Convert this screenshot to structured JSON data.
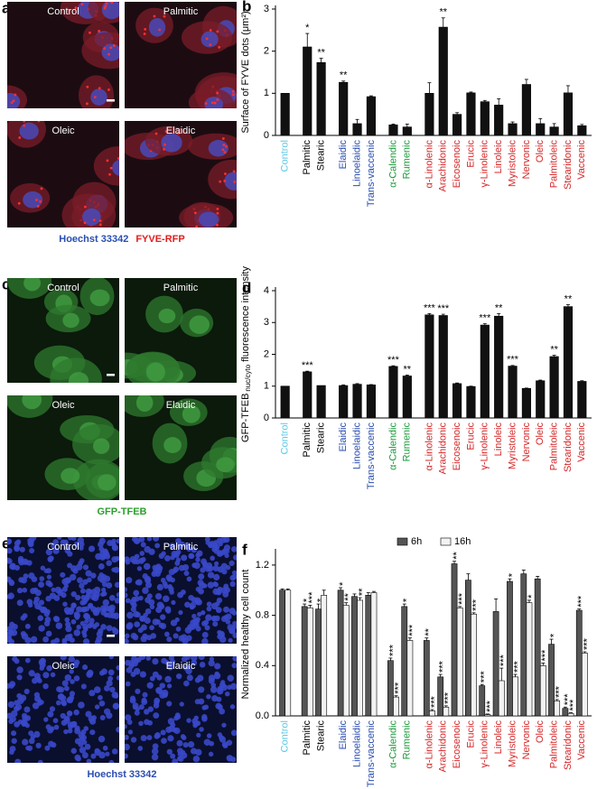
{
  "images": {
    "a": {
      "panel": "a",
      "labels": [
        "Control",
        "Palmitic",
        "Oleic",
        "Elaidic"
      ],
      "legend": [
        {
          "text": "Hoechst 33342",
          "color": "#2a4db0"
        },
        {
          "text": "FYVE-RFP",
          "color": "#e02020"
        }
      ]
    },
    "c": {
      "panel": "c",
      "labels": [
        "Control",
        "Palmitic",
        "Oleic",
        "Elaidic"
      ],
      "legend": [
        {
          "text": "GFP-TFEB",
          "color": "#2ca02c"
        }
      ]
    },
    "e": {
      "panel": "e",
      "labels": [
        "Control",
        "Palmitic",
        "Oleic",
        "Elaidic"
      ],
      "legend": [
        {
          "text": "Hoechst 33342",
          "color": "#2a4db0"
        }
      ]
    }
  },
  "chart_data": [
    {
      "type": "bar",
      "panel": "b",
      "ylabel": "Surface of FYVE dots (μm²)",
      "categories": [
        "Control",
        "Palmitic",
        "Stearic",
        "Elaidic",
        "Linoelaidic",
        "Trans-vaccenic",
        "α-Calendic",
        "Rumenic",
        "α-Linolenic",
        "Arachidonic",
        "Eicosenoic",
        "Erucic",
        "γ-Linolenic",
        "Linoleic",
        "Myristoleic",
        "Nervonic",
        "Oleic",
        "Palmitoleic",
        "Stearidonic",
        "Vaccenic"
      ],
      "category_colors": [
        "#5bc8e6",
        "#000000",
        "#000000",
        "#2a4db0",
        "#2a4db0",
        "#2a4db0",
        "#1a9a3a",
        "#1a9a3a",
        "#d62728",
        "#d62728",
        "#d62728",
        "#d62728",
        "#d62728",
        "#d62728",
        "#d62728",
        "#d62728",
        "#d62728",
        "#d62728",
        "#d62728",
        "#d62728"
      ],
      "color": "#111111",
      "values": [
        1.0,
        2.1,
        1.73,
        1.26,
        0.28,
        0.92,
        0.25,
        0.2,
        1.0,
        2.57,
        0.5,
        1.01,
        0.8,
        0.72,
        0.28,
        1.21,
        0.28,
        0.2,
        1.01,
        0.23
      ],
      "errors": [
        0,
        0.32,
        0.1,
        0.03,
        0.1,
        0.02,
        0.02,
        0.07,
        0.25,
        0.22,
        0.04,
        0.02,
        0.03,
        0.15,
        0.04,
        0.12,
        0.12,
        0.08,
        0.17,
        0.03
      ],
      "significance": [
        null,
        "*",
        "**",
        "**",
        null,
        null,
        null,
        null,
        null,
        "**",
        null,
        null,
        null,
        null,
        null,
        null,
        null,
        null,
        null,
        null
      ],
      "ylim": [
        0,
        3
      ],
      "yticks": [
        0,
        1,
        2,
        3
      ]
    },
    {
      "type": "bar",
      "panel": "d",
      "ylabel": "GFP-TFEB",
      "ylabel_subscript": "nuc/cyto",
      "ylabel_rest": "fluorescence intensity",
      "categories": [
        "Control",
        "Palmitic",
        "Stearic",
        "Elaidic",
        "Linoelaidic",
        "Trans-vaccenic",
        "α-Calendic",
        "Rumenic",
        "α-Linolenic",
        "Arachidonic",
        "Eicosenoic",
        "Erucic",
        "γ-Linolenic",
        "Linoleic",
        "Myristoleic",
        "Nervonic",
        "Oleic",
        "Palmitoleic",
        "Stearidonic",
        "Vaccenic"
      ],
      "category_colors": [
        "#5bc8e6",
        "#000000",
        "#000000",
        "#2a4db0",
        "#2a4db0",
        "#2a4db0",
        "#1a9a3a",
        "#1a9a3a",
        "#d62728",
        "#d62728",
        "#d62728",
        "#d62728",
        "#d62728",
        "#d62728",
        "#d62728",
        "#d62728",
        "#d62728",
        "#d62728",
        "#d62728",
        "#d62728"
      ],
      "color": "#111111",
      "values": [
        1.0,
        1.45,
        1.02,
        1.02,
        1.06,
        1.04,
        1.62,
        1.32,
        3.24,
        3.22,
        1.08,
        0.99,
        2.92,
        3.2,
        1.63,
        0.93,
        1.17,
        1.93,
        3.5,
        1.15
      ],
      "errors": [
        0,
        0.02,
        0,
        0.02,
        0.02,
        0.01,
        0.02,
        0.03,
        0.04,
        0.04,
        0.02,
        0.01,
        0.04,
        0.08,
        0.02,
        0.01,
        0.02,
        0.04,
        0.06,
        0.02
      ],
      "significance": [
        null,
        "***",
        null,
        null,
        null,
        null,
        "***",
        "**",
        "***",
        "***",
        null,
        null,
        "***",
        "**",
        "***",
        null,
        null,
        "**",
        "**",
        null
      ],
      "ylim": [
        0,
        4
      ],
      "yticks": [
        0,
        1,
        2,
        3,
        4
      ]
    },
    {
      "type": "bar",
      "panel": "f",
      "ylabel": "Normalized healthy cell count",
      "categories": [
        "Control",
        "Palmitic",
        "Stearic",
        "Elaidic",
        "Linoelaidic",
        "Trans-vaccenic",
        "α-Calendic",
        "Rumenic",
        "α-Linolenic",
        "Arachidonic",
        "Eicosenoic",
        "Erucic",
        "γ-Linolenic",
        "Linoleic",
        "Myristoleic",
        "Nervonic",
        "Oleic",
        "Palmitoleic",
        "Stearidonic",
        "Vaccenic"
      ],
      "category_colors": [
        "#5bc8e6",
        "#000000",
        "#000000",
        "#2a4db0",
        "#2a4db0",
        "#2a4db0",
        "#1a9a3a",
        "#1a9a3a",
        "#d62728",
        "#d62728",
        "#d62728",
        "#d62728",
        "#d62728",
        "#d62728",
        "#d62728",
        "#d62728",
        "#d62728",
        "#d62728",
        "#d62728",
        "#d62728"
      ],
      "series": [
        {
          "name": "6h",
          "color": "#555555",
          "values": [
            1.0,
            0.87,
            0.85,
            1.0,
            0.95,
            0.96,
            0.44,
            0.87,
            0.6,
            0.31,
            1.21,
            1.08,
            0.24,
            0.83,
            1.07,
            1.13,
            1.09,
            0.57,
            0.06,
            0.84
          ],
          "errors": [
            0.01,
            0.02,
            0.04,
            0.02,
            0.02,
            0.02,
            0.02,
            0.02,
            0.02,
            0.02,
            0.02,
            0.05,
            0.01,
            0.1,
            0.02,
            0.03,
            0.02,
            0.04,
            0.01,
            0.01
          ],
          "significance": [
            null,
            "*",
            "*",
            "*",
            null,
            null,
            "***",
            "*",
            "**",
            "***",
            "**",
            null,
            "***",
            null,
            "*",
            null,
            null,
            "*",
            "***",
            "***"
          ]
        },
        {
          "name": "16h",
          "color": "#f2f2f2",
          "values": [
            1.0,
            0.86,
            0.96,
            0.88,
            0.92,
            0.98,
            0.15,
            0.6,
            0.04,
            0.07,
            0.86,
            0.81,
            0.01,
            0.28,
            0.31,
            0.9,
            0.4,
            0.12,
            0.02,
            0.5
          ],
          "errors": [
            0.01,
            0.02,
            0.04,
            0.02,
            0.02,
            0.01,
            0.01,
            0.02,
            0.01,
            0.01,
            0.01,
            0.01,
            0.005,
            0.1,
            0.02,
            0.02,
            0.02,
            0.01,
            0.005,
            0.01
          ],
          "significance": [
            null,
            "***",
            null,
            "**",
            "**",
            null,
            "***",
            "***",
            "***",
            "***",
            "***",
            "***",
            "***",
            "***",
            "***",
            "*",
            "***",
            "***",
            "***",
            "***"
          ]
        }
      ],
      "legend": "top",
      "ylim": [
        0,
        1.3
      ],
      "yticks": [
        {
          "value": 0,
          "label": "0.0"
        },
        0.4,
        0.8,
        1.2
      ]
    }
  ]
}
